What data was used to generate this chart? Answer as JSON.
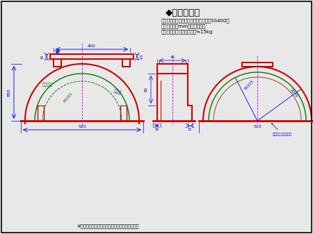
{
  "title": "◆ピザ窯の蓋",
  "subtitle_line1": "寸法単位＝ミリメートル　材質＝鉄（SS400）",
  "subtitle_line2": "板厚＝４．５mm　製作数＝１",
  "subtitle_line3": "塗装＝耐熱シルバー　重量≒15kg",
  "footnote": "※差し込み板は型紙のゲージ通りに製作します．",
  "bg_color": "#e8e8e8",
  "red": "#cc0000",
  "dark_green": "#007700",
  "blue": "#0000cc",
  "magenta": "#cc00cc",
  "brown": "#8B4513"
}
